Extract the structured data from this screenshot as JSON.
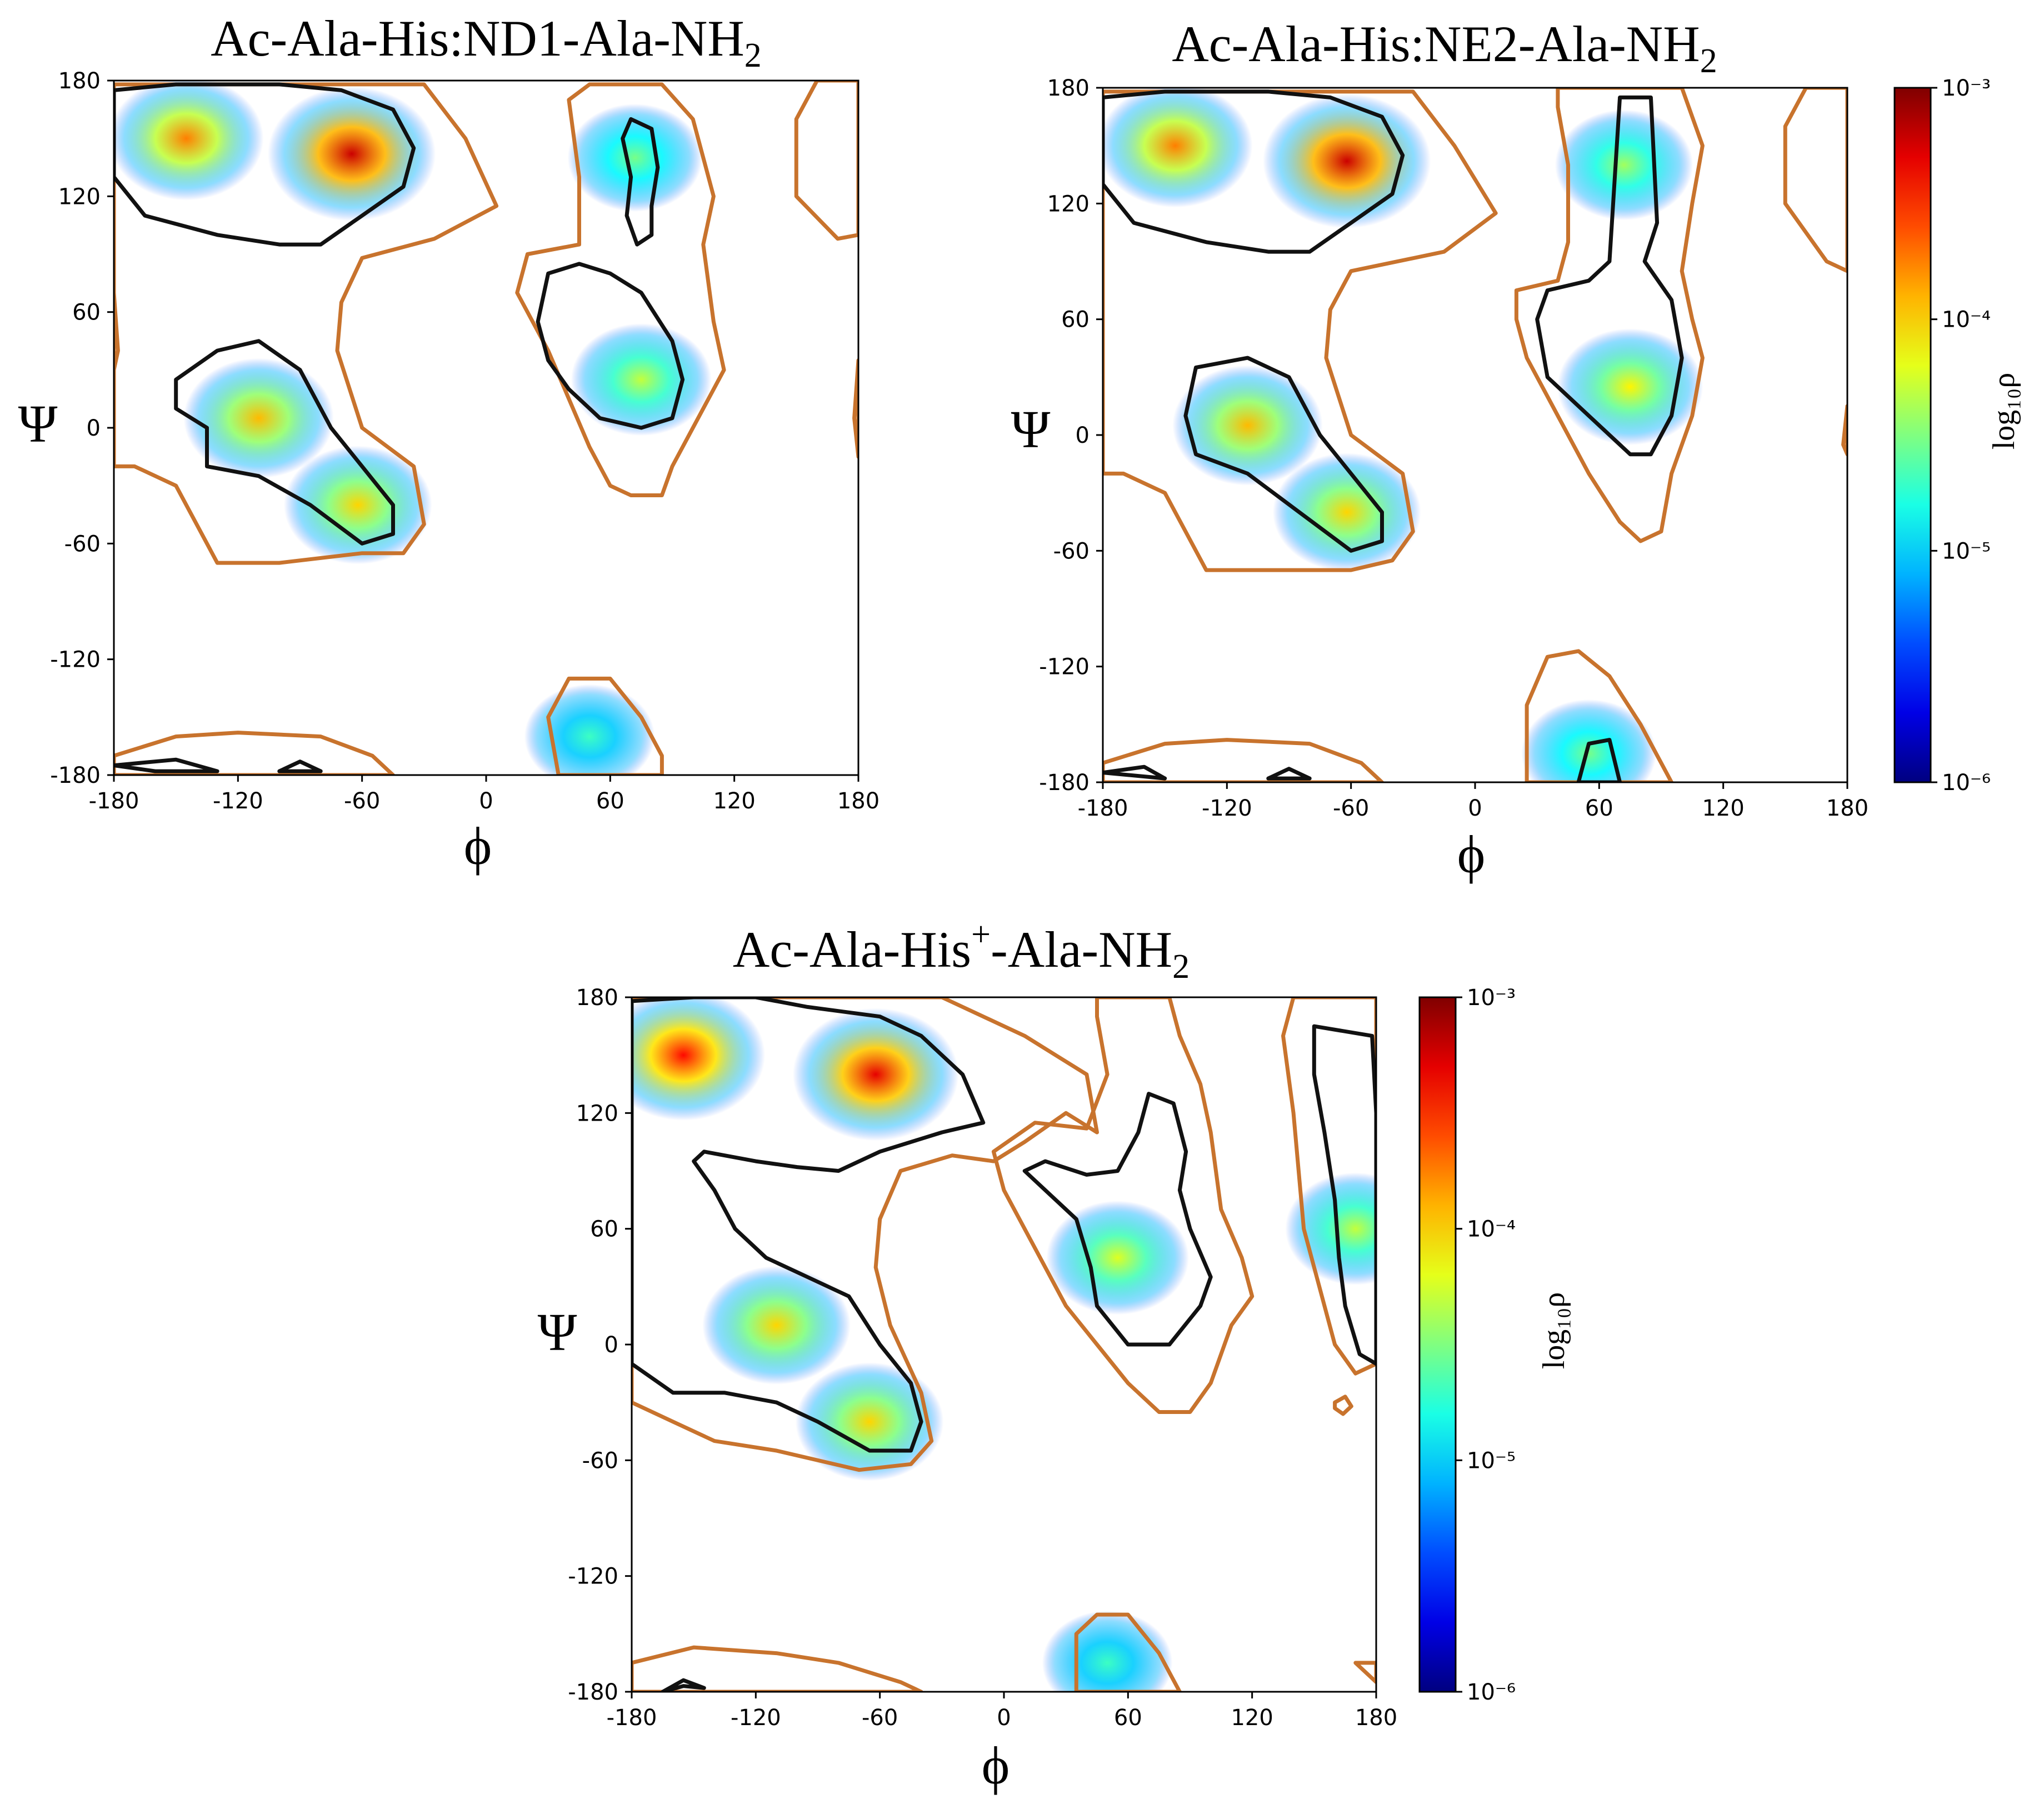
{
  "chart_data": [
    {
      "type": "heatmap",
      "title_parts": [
        "Ac-Ala-His:ND1-Ala-NH",
        "2",
        ""
      ],
      "title": "Ac-Ala-His:ND1-Ala-NH2",
      "xlabel": "ϕ",
      "ylabel": "Ψ",
      "xlim": [
        -180,
        180
      ],
      "ylim": [
        -180,
        180
      ],
      "xticks": [
        -180,
        -120,
        -60,
        0,
        60,
        120,
        180
      ],
      "yticks": [
        -180,
        -120,
        -60,
        0,
        60,
        120,
        180
      ],
      "colorbar": false,
      "density_peaks": [
        {
          "phi": -65,
          "psi": 142,
          "density": 0.0006
        },
        {
          "phi": -145,
          "psi": 150,
          "density": 0.00018
        },
        {
          "phi": -110,
          "psi": 5,
          "density": 0.00012
        },
        {
          "phi": -62,
          "psi": -40,
          "density": 0.0001
        },
        {
          "phi": 75,
          "psi": 25,
          "density": 5e-05
        },
        {
          "phi": 72,
          "psi": 140,
          "density": 3e-05
        },
        {
          "phi": 50,
          "psi": -160,
          "density": 2e-05
        }
      ]
    },
    {
      "type": "heatmap",
      "title_parts": [
        "Ac-Ala-His:NE2-Ala-NH",
        "2",
        ""
      ],
      "title": "Ac-Ala-His:NE2-Ala-NH2",
      "xlabel": "ϕ",
      "ylabel": "Ψ",
      "xlim": [
        -180,
        180
      ],
      "ylim": [
        -180,
        180
      ],
      "xticks": [
        -180,
        -120,
        -60,
        0,
        60,
        120,
        180
      ],
      "yticks": [
        -180,
        -120,
        -60,
        0,
        60,
        120,
        180
      ],
      "colorbar": true,
      "colorbar_label": "log₁₀ρ",
      "colorbar_ticks": [
        "10⁻³",
        "10⁻⁴",
        "10⁻⁵",
        "10⁻⁶"
      ],
      "colorbar_range": [
        1e-06,
        0.001
      ],
      "density_peaks": [
        {
          "phi": -62,
          "psi": 142,
          "density": 0.0006
        },
        {
          "phi": -145,
          "psi": 150,
          "density": 0.00018
        },
        {
          "phi": -110,
          "psi": 5,
          "density": 0.00012
        },
        {
          "phi": -62,
          "psi": -40,
          "density": 0.0001
        },
        {
          "phi": 75,
          "psi": 25,
          "density": 8e-05
        },
        {
          "phi": 72,
          "psi": 140,
          "density": 4e-05
        },
        {
          "phi": 55,
          "psi": -165,
          "density": 3e-05
        }
      ]
    },
    {
      "type": "heatmap",
      "title_parts": [
        "Ac-Ala-His",
        "+",
        "-Ala-NH",
        "2"
      ],
      "title": "Ac-Ala-His+-Ala-NH2",
      "xlabel": "ϕ",
      "ylabel": "Ψ",
      "xlim": [
        -180,
        180
      ],
      "ylim": [
        -180,
        180
      ],
      "xticks": [
        -180,
        -120,
        -60,
        0,
        60,
        120,
        180
      ],
      "yticks": [
        -180,
        -120,
        -60,
        0,
        60,
        120,
        180
      ],
      "colorbar": true,
      "colorbar_label": "log₁₀ρ",
      "colorbar_ticks": [
        "10⁻³",
        "10⁻⁴",
        "10⁻⁵",
        "10⁻⁶"
      ],
      "colorbar_range": [
        1e-06,
        0.001
      ],
      "density_peaks": [
        {
          "phi": -155,
          "psi": 150,
          "density": 0.0004
        },
        {
          "phi": -62,
          "psi": 140,
          "density": 0.0005
        },
        {
          "phi": -110,
          "psi": 10,
          "density": 0.0001
        },
        {
          "phi": -65,
          "psi": -40,
          "density": 0.0001
        },
        {
          "phi": 55,
          "psi": 45,
          "density": 6e-05
        },
        {
          "phi": 170,
          "psi": 60,
          "density": 5e-05
        },
        {
          "phi": 50,
          "psi": -165,
          "density": 2e-05
        }
      ]
    }
  ]
}
